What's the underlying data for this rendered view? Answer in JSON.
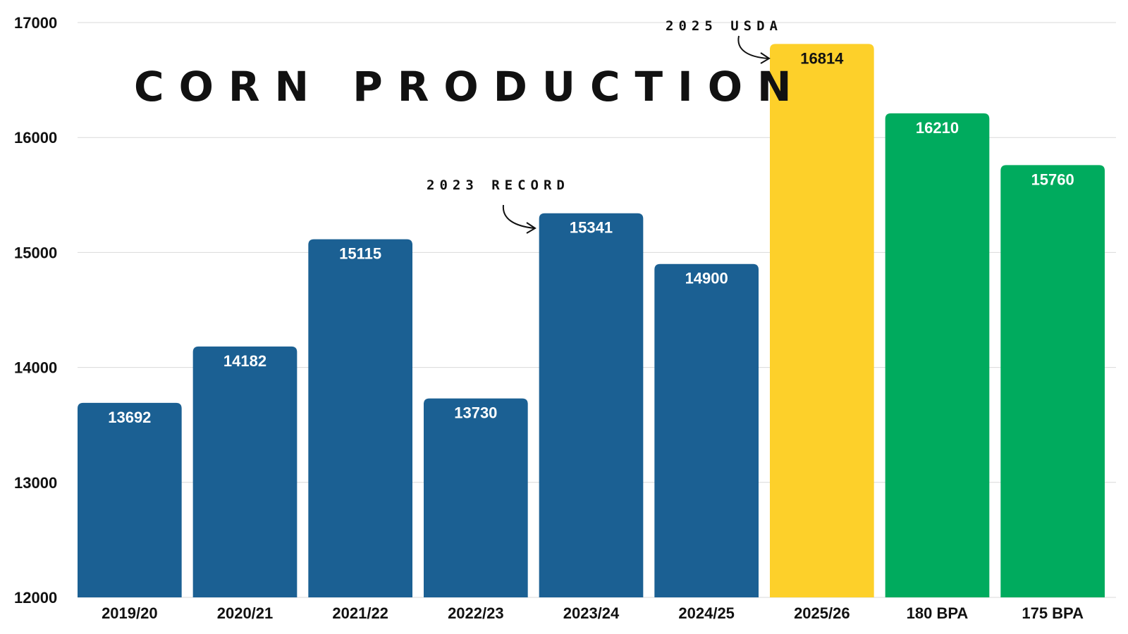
{
  "chart_data": {
    "type": "bar",
    "title": "CORN PRODUCTION",
    "xlabel": "",
    "ylabel": "",
    "ylim": [
      12000,
      17000
    ],
    "yticks": [
      12000,
      13000,
      14000,
      15000,
      16000,
      17000
    ],
    "grid": true,
    "categories": [
      "2019/20",
      "2020/21",
      "2021/22",
      "2022/23",
      "2023/24",
      "2024/25",
      "2025/26",
      "180 BPA",
      "175 BPA"
    ],
    "values": [
      13692,
      14182,
      15115,
      13730,
      15341,
      14900,
      16814,
      16210,
      15760
    ],
    "bar_colors": [
      "#1b6093",
      "#1b6093",
      "#1b6093",
      "#1b6093",
      "#1b6093",
      "#1b6093",
      "#fdd02a",
      "#00ab5e",
      "#00ab5e"
    ],
    "label_colors": [
      "#ffffff",
      "#ffffff",
      "#ffffff",
      "#ffffff",
      "#ffffff",
      "#ffffff",
      "#111111",
      "#ffffff",
      "#ffffff"
    ],
    "annotations": [
      {
        "text": "2023 RECORD",
        "category": "2023/24"
      },
      {
        "text": "2025 USDA",
        "category": "2025/26"
      }
    ]
  }
}
